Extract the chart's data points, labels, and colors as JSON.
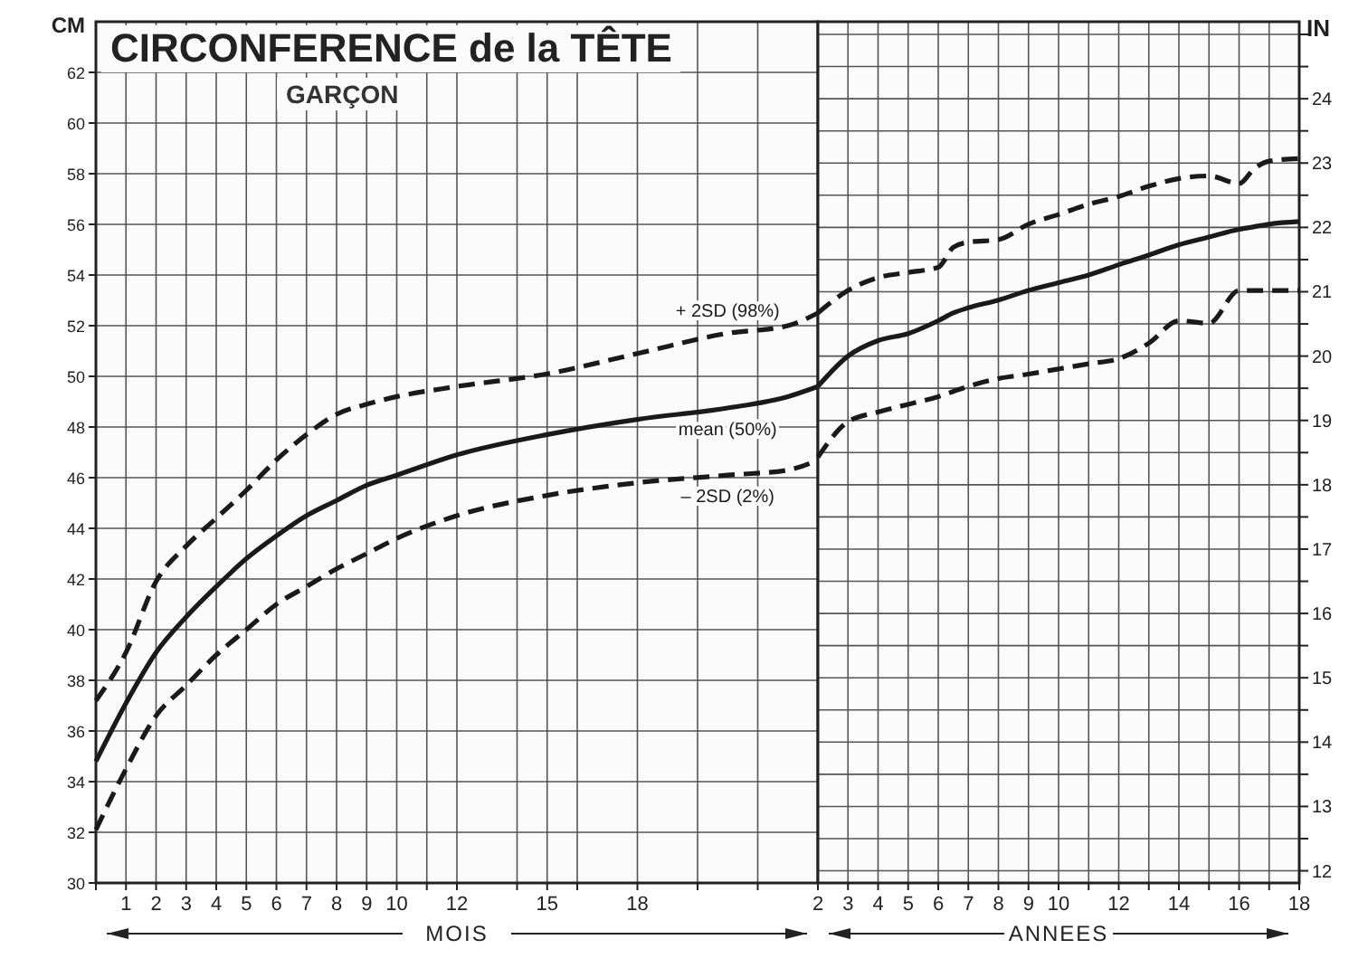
{
  "chart_data": [
    {
      "type": "line",
      "title": "CIRCONFERENCE de la TÊTE",
      "subtitle": "GARÇON",
      "xlabel": "MOIS",
      "ylabel": "CM",
      "x": [
        0,
        1,
        2,
        3,
        4,
        5,
        6,
        7,
        8,
        9,
        10,
        12,
        15,
        18,
        21,
        23,
        24
      ],
      "series": [
        {
          "name": "+ 2SD (98%)",
          "color": "#1a1a1a",
          "line_style": "dashed",
          "values": [
            37.2,
            39.1,
            41.9,
            43.3,
            44.4,
            45.5,
            46.7,
            47.7,
            48.5,
            48.9,
            49.2,
            49.6,
            50.1,
            50.9,
            51.7,
            52.0,
            52.5
          ]
        },
        {
          "name": "mean (50%)",
          "color": "#1a1a1a",
          "line_style": "solid",
          "values": [
            34.8,
            37.1,
            39.1,
            40.5,
            41.7,
            42.8,
            43.7,
            44.5,
            45.1,
            45.7,
            46.1,
            46.9,
            47.7,
            48.3,
            48.75,
            49.2,
            49.6
          ]
        },
        {
          "name": "– 2SD (2%)",
          "color": "#1a1a1a",
          "line_style": "dashed",
          "values": [
            32.1,
            34.5,
            36.6,
            37.8,
            39.0,
            40.0,
            41.0,
            41.7,
            42.4,
            43.0,
            43.6,
            44.5,
            45.3,
            45.8,
            46.1,
            46.3,
            46.7
          ]
        }
      ],
      "xlim": [
        0,
        24
      ],
      "ylim": [
        30,
        64
      ],
      "xticks": [
        {
          "value": 0,
          "label": null
        },
        1,
        2,
        3,
        4,
        5,
        6,
        7,
        8,
        9,
        10,
        {
          "value": 11,
          "label": null
        },
        12,
        {
          "value": 14,
          "label": null
        },
        15,
        {
          "value": 16,
          "label": null
        },
        18,
        {
          "value": 20,
          "label": null
        },
        {
          "value": 22,
          "label": null
        },
        {
          "value": 24,
          "label": null
        }
      ],
      "yticks": [
        30,
        32,
        34,
        36,
        38,
        40,
        42,
        44,
        46,
        48,
        50,
        52,
        54,
        56,
        58,
        60,
        62
      ],
      "grid": true
    },
    {
      "type": "line",
      "xlabel": "ANNEES",
      "y2label": "IN",
      "x": [
        2,
        3,
        4,
        5,
        6,
        6.5,
        7,
        8,
        9,
        10,
        11,
        12,
        13,
        14,
        15,
        16,
        16.5,
        17,
        18
      ],
      "series": [
        {
          "color": "#1a1a1a",
          "line_style": "dashed",
          "axis": "y2",
          "values": [
            20.67,
            21.02,
            21.22,
            21.3,
            21.38,
            21.69,
            21.77,
            21.81,
            22.05,
            22.2,
            22.36,
            22.48,
            22.64,
            22.76,
            22.8,
            22.68,
            22.91,
            23.03,
            23.07
          ]
        },
        {
          "color": "#1a1a1a",
          "line_style": "solid",
          "axis": "y2",
          "values": [
            19.53,
            20.0,
            20.24,
            20.35,
            20.55,
            20.67,
            20.75,
            20.87,
            21.02,
            21.14,
            21.26,
            21.42,
            21.57,
            21.73,
            21.85,
            21.97,
            22.01,
            22.05,
            22.09
          ]
        },
        {
          "color": "#1a1a1a",
          "line_style": "dashed",
          "axis": "y2",
          "values": [
            18.43,
            18.98,
            19.13,
            19.25,
            19.37,
            19.45,
            19.53,
            19.65,
            19.72,
            19.8,
            19.88,
            19.96,
            20.2,
            20.55,
            20.51,
            21.02,
            21.02,
            21.02,
            21.02
          ]
        }
      ],
      "xlim": [
        2,
        18
      ],
      "xticks": [
        2,
        3,
        4,
        5,
        6,
        7,
        8,
        9,
        10,
        {
          "value": 11,
          "label": null
        },
        12,
        {
          "value": 13,
          "label": null
        },
        14,
        {
          "value": 15,
          "label": null
        },
        16,
        {
          "value": 17,
          "label": null
        },
        18
      ],
      "y2lim": [
        11.811,
        25.197
      ],
      "y2ticks": [
        12,
        {
          "value": 12.5,
          "label": null
        },
        13,
        {
          "value": 13.5,
          "label": null
        },
        14,
        {
          "value": 14.5,
          "label": null
        },
        15,
        {
          "value": 15.5,
          "label": null
        },
        16,
        {
          "value": 16.5,
          "label": null
        },
        17,
        {
          "value": 17.5,
          "label": null
        },
        18,
        {
          "value": 18.5,
          "label": null
        },
        19,
        {
          "value": 19.5,
          "label": null
        },
        20,
        {
          "value": 20.5,
          "label": null
        },
        21,
        {
          "value": 21.5,
          "label": null
        },
        22,
        {
          "value": 22.5,
          "label": null
        },
        23,
        {
          "value": 23.5,
          "label": null
        },
        24,
        {
          "value": 24.5,
          "label": null
        },
        {
          "value": 25,
          "label": null
        }
      ],
      "grid": true
    }
  ]
}
